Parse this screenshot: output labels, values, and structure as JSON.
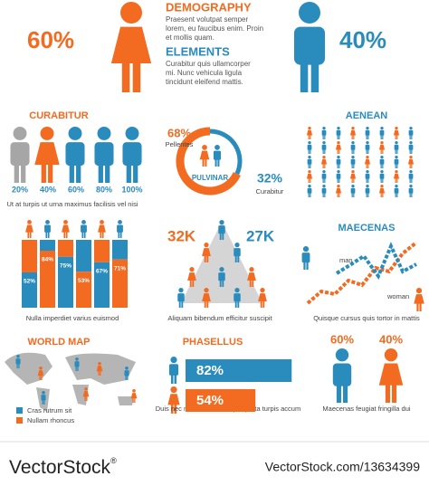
{
  "demography": {
    "title": "DEMOGRAPHY",
    "percent": "60%",
    "text": [
      "Praesent volutpat semper",
      "lorem, eu faucibus enim. Proin",
      "et mollis quam."
    ]
  },
  "elements": {
    "title": "ELEMENTS",
    "percent": "40%",
    "text": [
      "Curabitur quis ullamcorper",
      "mi. Nunc vehicula ligula",
      "tincidunt eleifend mattis."
    ]
  },
  "curabitur": {
    "title": "CURABITUR",
    "labels": [
      "20%",
      "40%",
      "60%",
      "80%",
      "100%"
    ],
    "caption": "Ut at turpis ut urna maximus facilisis vel nisi"
  },
  "donut": {
    "values": [
      68,
      32
    ],
    "value_labels": [
      "68%",
      "32%"
    ],
    "names": [
      "Pellentes",
      "Curabitur"
    ],
    "center_label": "PULVINAR",
    "colors": [
      "#f26b21",
      "#2a8bbd"
    ]
  },
  "aenean": {
    "title": "AENEAN"
  },
  "columns": {
    "values": [
      52,
      84,
      75,
      53,
      67,
      71
    ],
    "value_labels": [
      "52%",
      "84%",
      "75%",
      "53%",
      "67%",
      "71%"
    ],
    "caption": "Nulla imperdiet varius euismod"
  },
  "pyramid": {
    "labels": [
      "32K",
      "27K"
    ],
    "caption": "Aliquam  bibendum efficitur suscipit"
  },
  "maecenas": {
    "title": "MAECENAS",
    "legend": [
      "man",
      "woman"
    ],
    "caption": "Quisque cursus quis tortor in mattis"
  },
  "world_map": {
    "title": "WORLD MAP",
    "legend": [
      "Cras rutrum sit",
      "Nullam rhoncus"
    ]
  },
  "phasellus": {
    "title": "PHASELLUS",
    "values": [
      82,
      54
    ],
    "value_labels": [
      "82%",
      "54%"
    ],
    "colors": [
      "#2a8bbd",
      "#f26b21"
    ],
    "caption": "Duis nec metus risus semper porta turpis accum"
  },
  "gender": {
    "labels": [
      "60%",
      "40%"
    ],
    "caption": "Maecenas feugiat fringilla dui"
  },
  "footer": {
    "brand": "VectorStock",
    "mark": "®",
    "url": "VectorStock.com/13634399"
  }
}
